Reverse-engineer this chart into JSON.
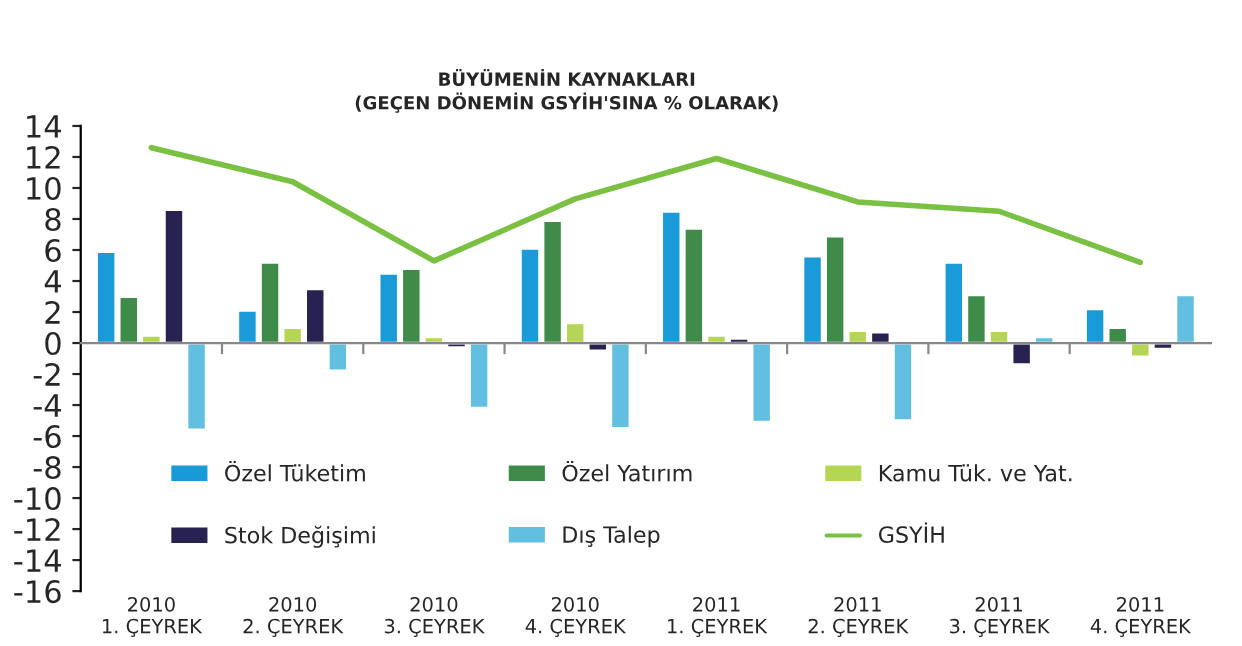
{
  "chart_data": {
    "type": "bar",
    "title": "BÜYÜMENİN KAYNAKLARI\n(GEÇEN DÖNEMİN GSYİH'SINA % OLARAK)",
    "categories": [
      "2010\n1. ÇEYREK",
      "2010\n2. ÇEYREK",
      "2010\n3. ÇEYREK",
      "2010\n4. ÇEYREK",
      "2011\n1. ÇEYREK",
      "2011\n2. ÇEYREK",
      "2011\n3. ÇEYREK",
      "2011\n4. ÇEYREK"
    ],
    "series": [
      {
        "name": "Özel Tüketim",
        "color": "#1a9ad6",
        "values": [
          5.9,
          2.1,
          4.5,
          6.1,
          8.5,
          5.6,
          5.2,
          2.2
        ]
      },
      {
        "name": "Özel Yatırım",
        "color": "#3f8b4a",
        "values": [
          3.0,
          5.2,
          4.8,
          7.9,
          7.4,
          6.9,
          3.1,
          1.0
        ]
      },
      {
        "name": "Kamu Tük. ve Yat.",
        "color": "#b5d554",
        "values": [
          0.5,
          1.0,
          0.4,
          1.3,
          0.5,
          0.8,
          0.8,
          -0.9
        ]
      },
      {
        "name": "Stok Değişimi",
        "color": "#27224f",
        "values": [
          8.6,
          3.5,
          -0.3,
          -0.5,
          0.3,
          0.7,
          -1.4,
          -0.4
        ]
      },
      {
        "name": "Dış Talep",
        "color": "#63bfe0",
        "values": [
          -5.6,
          -1.8,
          -4.2,
          -5.5,
          -5.1,
          -5.0,
          0.4,
          3.1
        ]
      },
      {
        "name": "GSYİH",
        "color": "#7ac143",
        "type": "line",
        "values": [
          12.6,
          10.4,
          5.3,
          9.3,
          11.9,
          9.1,
          8.5,
          5.2
        ]
      }
    ],
    "ylim": [
      -16,
      14
    ],
    "yticks": [
      -16,
      -14,
      -12,
      -10,
      -8,
      -6,
      -4,
      -2,
      0,
      2,
      4,
      6,
      8,
      10,
      12,
      14
    ],
    "legend": "bottom"
  }
}
